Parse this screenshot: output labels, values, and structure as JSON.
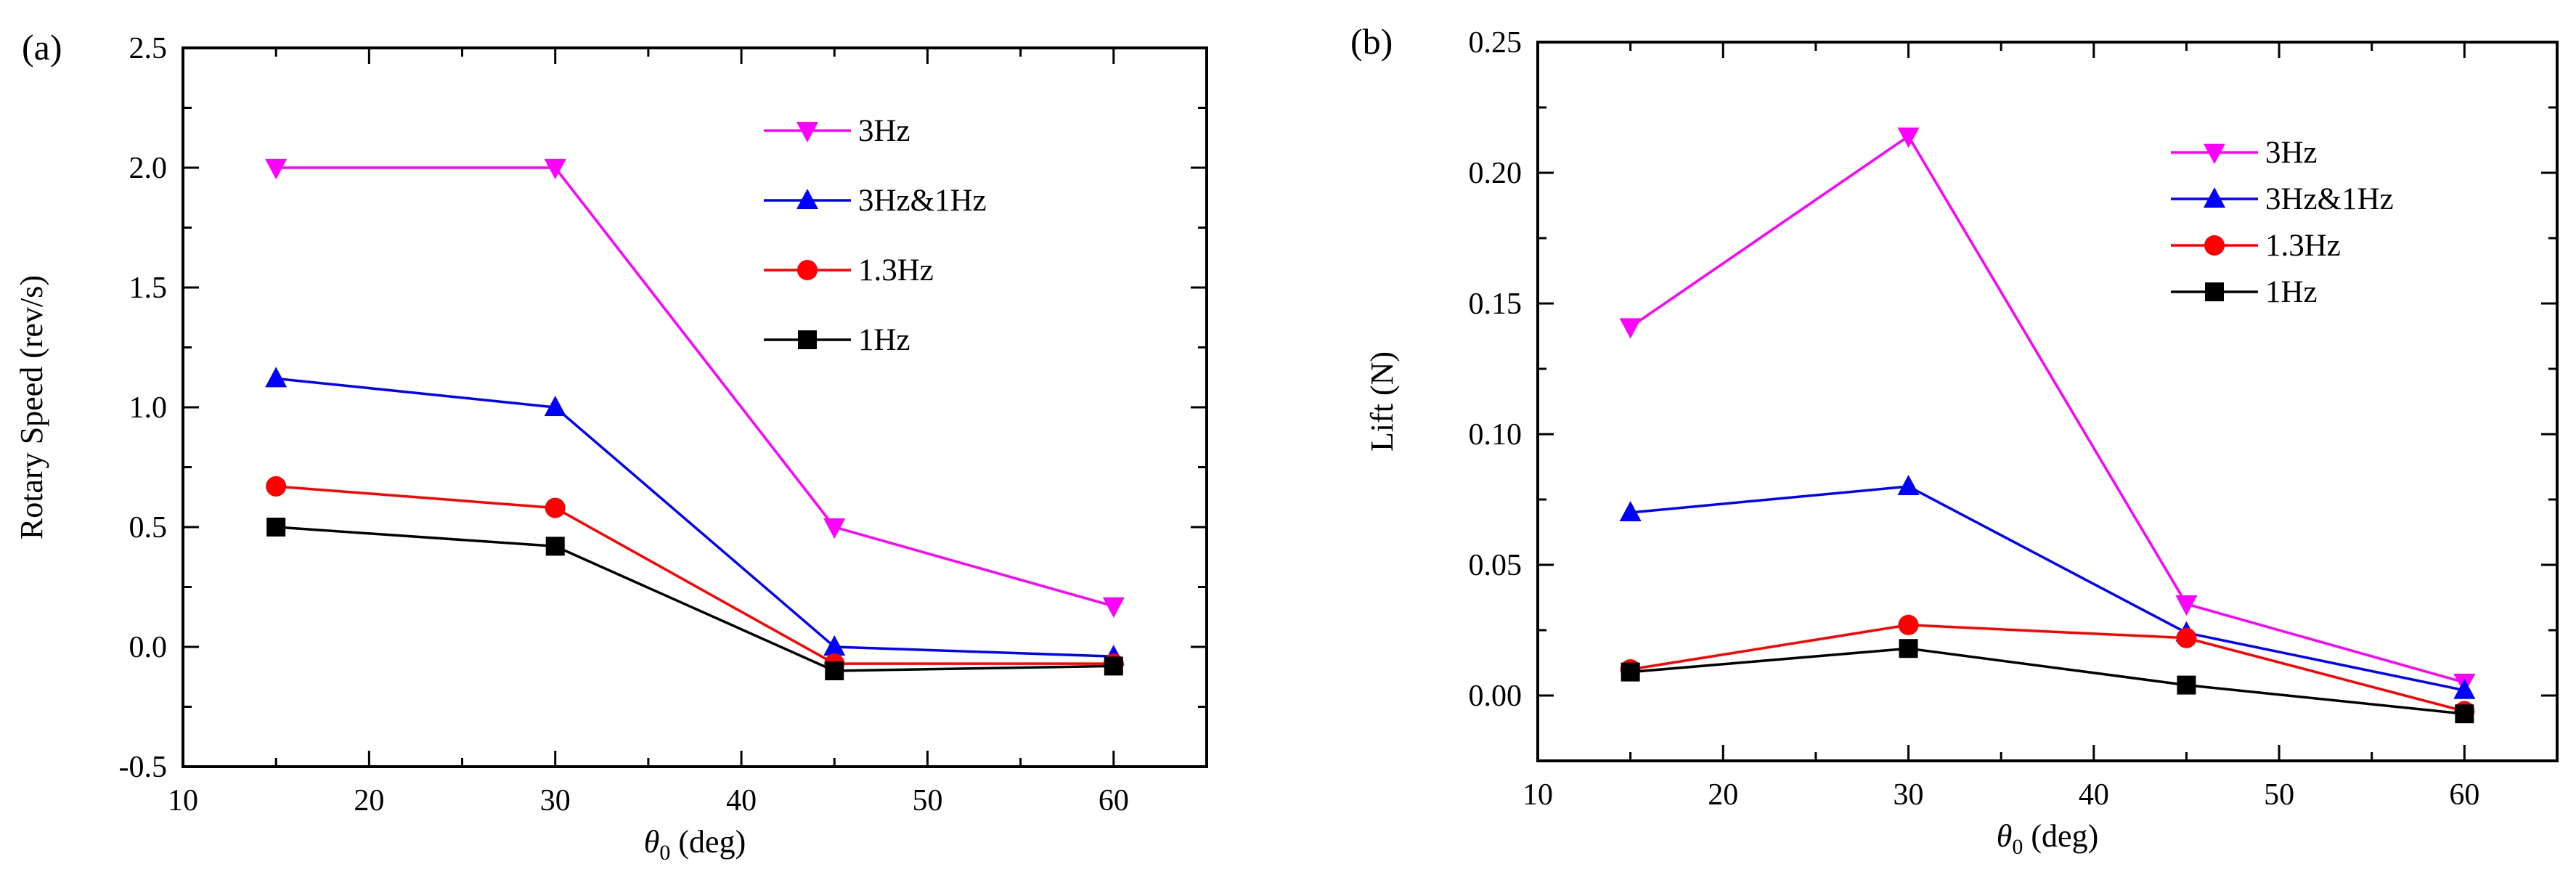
{
  "chart_data": [
    {
      "panel_label": "(a)",
      "type": "line",
      "xlabel_symbol": "θ",
      "xlabel_subscript": "0",
      "xlabel_suffix": " (deg)",
      "ylabel": "Rotary Speed (rev/s)",
      "xlim": [
        10,
        65
      ],
      "ylim": [
        -0.5,
        2.5
      ],
      "xticks": [
        "10",
        "20",
        "30",
        "40",
        "50",
        "60"
      ],
      "yticks": [
        "-0.5",
        "0.0",
        "0.5",
        "1.0",
        "1.5",
        "2.0",
        "2.5"
      ],
      "x": [
        15,
        30,
        45,
        60
      ],
      "legend_position": "top-right",
      "series": [
        {
          "name": "3Hz",
          "color": "#ff00ff",
          "marker": "triangle-down",
          "values": [
            2.0,
            2.0,
            0.5,
            0.17
          ]
        },
        {
          "name": "3Hz&1Hz",
          "color": "#0000ff",
          "marker": "triangle-up",
          "values": [
            1.12,
            1.0,
            0.0,
            -0.04
          ]
        },
        {
          "name": "1.3Hz",
          "color": "#ff0000",
          "marker": "circle",
          "values": [
            0.67,
            0.58,
            -0.07,
            -0.07
          ]
        },
        {
          "name": "1Hz",
          "color": "#000000",
          "marker": "square",
          "values": [
            0.5,
            0.42,
            -0.1,
            -0.08
          ]
        }
      ]
    },
    {
      "panel_label": "(b)",
      "type": "line",
      "xlabel_symbol": "θ",
      "xlabel_subscript": "0",
      "xlabel_suffix": " (deg)",
      "ylabel": "Lift (N)",
      "xlim": [
        10,
        65
      ],
      "ylim": [
        -0.025,
        0.25
      ],
      "xticks": [
        "10",
        "20",
        "30",
        "40",
        "50",
        "60"
      ],
      "yticks": [
        "0.00",
        "0.05",
        "0.10",
        "0.15",
        "0.20",
        "0.25"
      ],
      "x": [
        15,
        30,
        45,
        60
      ],
      "legend_position": "top-right",
      "series": [
        {
          "name": "3Hz",
          "color": "#ff00ff",
          "marker": "triangle-down",
          "values": [
            0.141,
            0.214,
            0.035,
            0.005
          ]
        },
        {
          "name": "3Hz&1Hz",
          "color": "#0000ff",
          "marker": "triangle-up",
          "values": [
            0.07,
            0.08,
            0.024,
            0.002
          ]
        },
        {
          "name": "1.3Hz",
          "color": "#ff0000",
          "marker": "circle",
          "values": [
            0.01,
            0.027,
            0.022,
            -0.006
          ]
        },
        {
          "name": "1Hz",
          "color": "#000000",
          "marker": "square",
          "values": [
            0.009,
            0.018,
            0.004,
            -0.007
          ]
        }
      ]
    }
  ]
}
